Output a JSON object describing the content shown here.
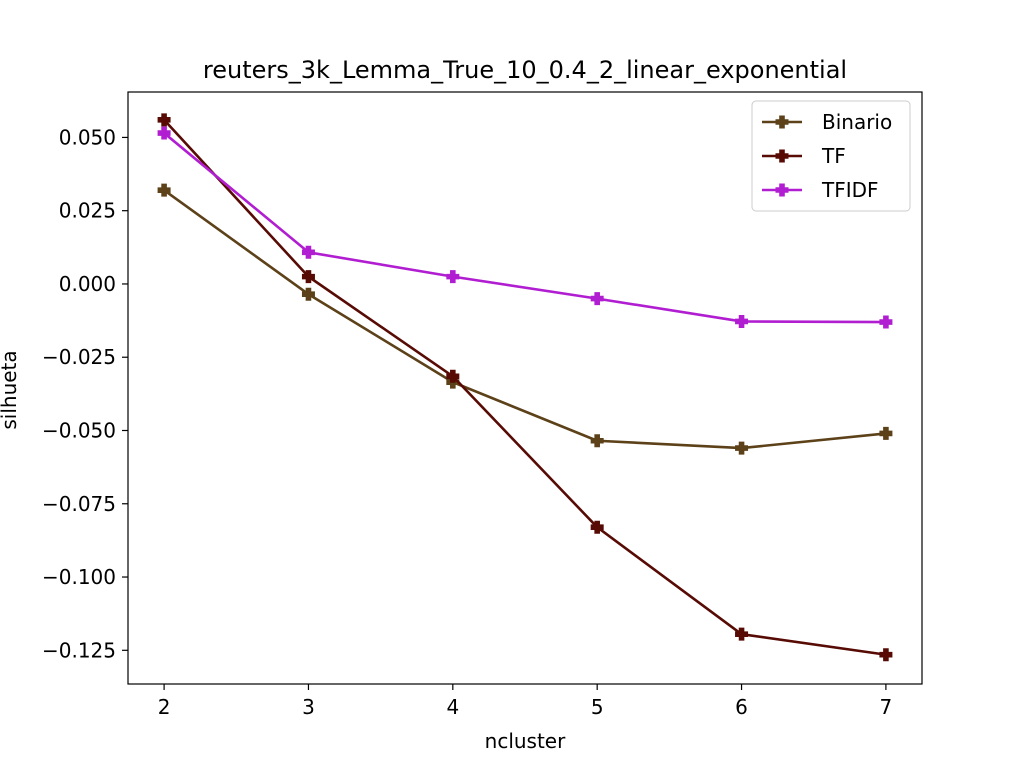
{
  "chart_data": {
    "type": "line",
    "title": "reuters_3k_Lemma_True_10_0.4_2_linear_exponential",
    "xlabel": "ncluster",
    "ylabel": "silhueta",
    "x": [
      2,
      3,
      4,
      5,
      6,
      7
    ],
    "xlim": [
      1.75,
      7.25
    ],
    "ylim": [
      -0.1365,
      0.0655
    ],
    "xticks": [
      2,
      3,
      4,
      5,
      6,
      7
    ],
    "xtick_labels": [
      "2",
      "3",
      "4",
      "5",
      "6",
      "7"
    ],
    "yticks": [
      0.05,
      0.025,
      0.0,
      -0.025,
      -0.05,
      -0.075,
      -0.1,
      -0.125
    ],
    "ytick_labels": [
      "0.050",
      "0.025",
      "0.000",
      "−0.025",
      "−0.050",
      "−0.075",
      "−0.100",
      "−0.125"
    ],
    "grid": false,
    "legend_position": "upper right",
    "marker": "plus-filled",
    "series": [
      {
        "name": "Binario",
        "color": "#5c4119",
        "values": [
          0.032,
          -0.0035,
          -0.0335,
          -0.0535,
          -0.056,
          -0.051
        ]
      },
      {
        "name": "TF",
        "color": "#570b04",
        "values": [
          0.056,
          0.0025,
          -0.0315,
          -0.083,
          -0.1195,
          -0.1265
        ]
      },
      {
        "name": "TFIDF",
        "color": "#b11ed1",
        "values": [
          0.0515,
          0.0108,
          0.0025,
          -0.005,
          -0.0128,
          -0.013
        ]
      }
    ]
  }
}
